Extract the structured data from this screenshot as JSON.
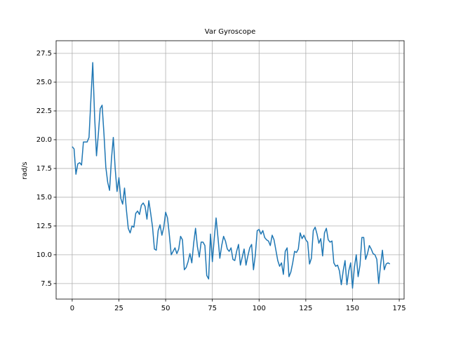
{
  "chart_data": {
    "type": "line",
    "title": "Var Gyroscope",
    "y_label": "rad/s",
    "color": "#1f77b4",
    "grid": true,
    "x": [
      0,
      1,
      2,
      3,
      4,
      5,
      6,
      7,
      8,
      9,
      10,
      11,
      12,
      13,
      14,
      15,
      16,
      17,
      18,
      19,
      20,
      21,
      22,
      23,
      24,
      25,
      26,
      27,
      28,
      29,
      30,
      31,
      32,
      33,
      34,
      35,
      36,
      37,
      38,
      39,
      40,
      41,
      42,
      43,
      44,
      45,
      46,
      47,
      48,
      49,
      50,
      51,
      52,
      53,
      54,
      55,
      56,
      57,
      58,
      59,
      60,
      61,
      62,
      63,
      64,
      65,
      66,
      67,
      68,
      69,
      70,
      71,
      72,
      73,
      74,
      75,
      76,
      77,
      78,
      79,
      80,
      81,
      82,
      83,
      84,
      85,
      86,
      87,
      88,
      89,
      90,
      91,
      92,
      93,
      94,
      95,
      96,
      97,
      98,
      99,
      100,
      101,
      102,
      103,
      104,
      105,
      106,
      107,
      108,
      109,
      110,
      111,
      112,
      113,
      114,
      115,
      116,
      117,
      118,
      119,
      120,
      121,
      122,
      123,
      124,
      125,
      126,
      127,
      128,
      129,
      130,
      131,
      132,
      133,
      134,
      135,
      136,
      137,
      138,
      139,
      140,
      141,
      142,
      143,
      144,
      145,
      146,
      147,
      148,
      149,
      150,
      151,
      152,
      153,
      154,
      155,
      156,
      157,
      158,
      159,
      160,
      161,
      162,
      163,
      164,
      165,
      166,
      167,
      168,
      169,
      170
    ],
    "values": [
      19.4,
      19.2,
      17.0,
      17.9,
      18.0,
      17.8,
      19.8,
      19.8,
      19.8,
      20.2,
      23.5,
      26.7,
      22.0,
      18.6,
      20.5,
      22.7,
      23.0,
      20.5,
      17.6,
      16.3,
      15.6,
      18.3,
      20.2,
      17.5,
      15.5,
      16.7,
      14.9,
      14.4,
      15.8,
      13.9,
      12.3,
      11.9,
      12.5,
      12.4,
      13.6,
      13.8,
      13.5,
      14.3,
      14.5,
      14.2,
      13.1,
      14.7,
      13.6,
      12.4,
      10.5,
      10.4,
      12.1,
      12.6,
      11.7,
      12.4,
      13.7,
      13.2,
      11.7,
      10.0,
      10.3,
      10.6,
      10.1,
      10.5,
      11.6,
      11.3,
      8.7,
      8.9,
      9.4,
      10.1,
      9.3,
      11.0,
      12.3,
      10.7,
      9.8,
      11.1,
      11.1,
      10.8,
      8.2,
      7.9,
      11.8,
      9.4,
      11.4,
      13.2,
      11.5,
      9.7,
      10.8,
      11.6,
      11.2,
      10.5,
      10.3,
      10.6,
      9.6,
      9.5,
      10.3,
      10.9,
      9.1,
      9.8,
      10.5,
      9.1,
      9.9,
      10.6,
      10.9,
      8.7,
      10.0,
      12.1,
      12.2,
      11.8,
      12.1,
      11.5,
      11.3,
      11.2,
      10.8,
      11.7,
      11.3,
      10.4,
      9.5,
      9.0,
      9.3,
      8.3,
      10.3,
      10.6,
      8.1,
      8.5,
      9.3,
      10.3,
      10.2,
      10.5,
      11.9,
      11.4,
      11.7,
      11.3,
      11.1,
      9.2,
      9.7,
      12.1,
      12.4,
      11.8,
      11.0,
      11.4,
      9.9,
      11.9,
      12.3,
      11.3,
      11.1,
      11.2,
      9.3,
      9.0,
      9.1,
      8.6,
      7.4,
      8.6,
      9.5,
      7.4,
      8.6,
      9.3,
      7.1,
      8.9,
      10.0,
      8.1,
      9.1,
      11.5,
      11.5,
      9.6,
      10.1,
      10.8,
      10.5,
      10.1,
      10.0,
      9.6,
      7.5,
      9.1,
      10.4,
      8.7,
      9.2,
      9.3,
      9.2
    ],
    "xlim": [
      -8.6,
      177.6
    ],
    "xticks": [
      0,
      25,
      50,
      75,
      100,
      125,
      150,
      175
    ],
    "ylim": [
      6.15,
      28.6
    ],
    "yticks": [
      7.5,
      {
        "value": 10,
        "label": "10.0"
      },
      12.5,
      {
        "value": 15,
        "label": "15.0"
      },
      17.5,
      {
        "value": 20,
        "label": "20.0"
      },
      22.5,
      {
        "value": 25,
        "label": "25.0"
      },
      27.5
    ]
  }
}
